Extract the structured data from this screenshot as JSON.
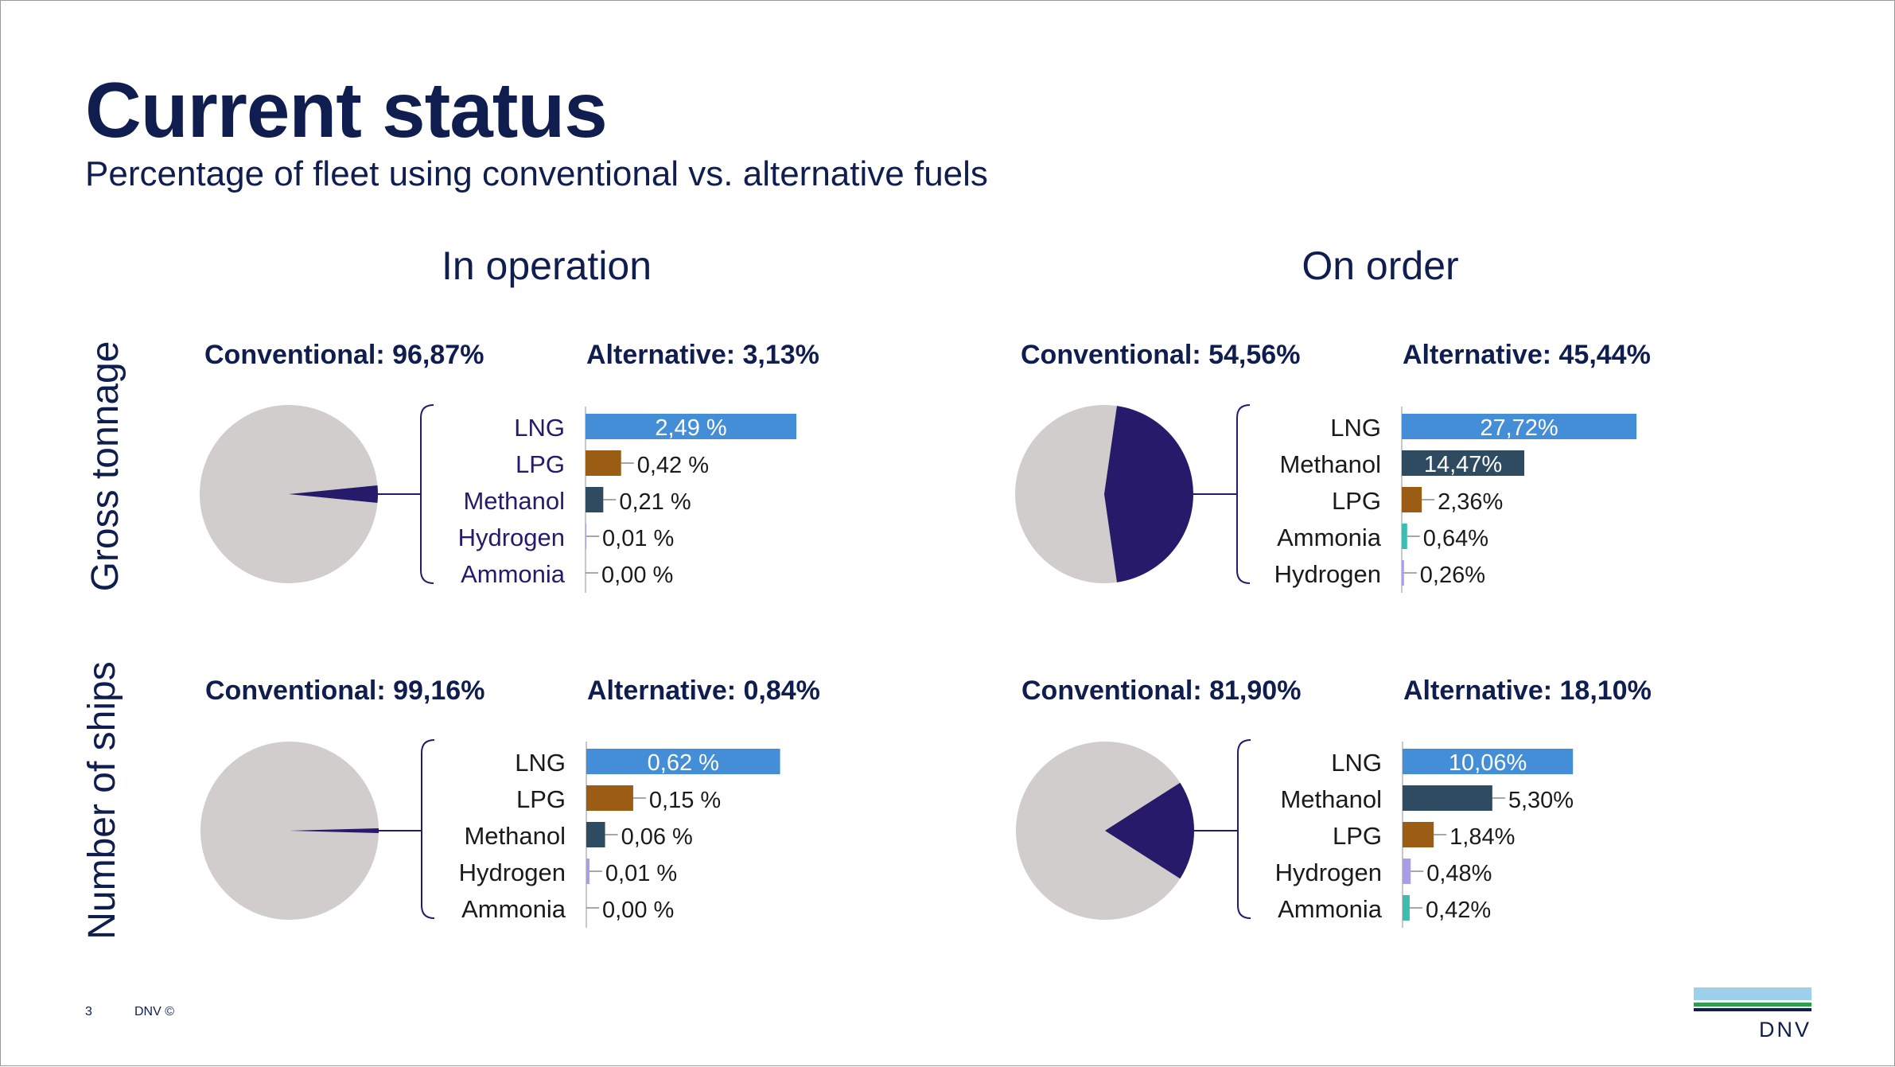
{
  "header": {
    "title": "Current status",
    "subtitle": "Percentage of fleet using conventional vs. alternative fuels"
  },
  "columns": [
    "In operation",
    "On order"
  ],
  "rows": [
    "Gross tonnage",
    "Number of ships"
  ],
  "colors": {
    "conventional": "#d0cdcc",
    "alternative": "#271a6b",
    "LNG": "#448ed8",
    "LPG": "#9a5d13",
    "Methanol": "#2f4b62",
    "Hydrogen": "#a79ee6",
    "Ammonia": "#3dbdb2",
    "bracket": "#271a6b",
    "text_dark": "#0f1d4f"
  },
  "chart_data": [
    {
      "type": "pie+bar",
      "conventional_label": "Conventional: 96,87%",
      "alternative_label": "Alternative: 3,13%",
      "pie": [
        {
          "name": "Conventional",
          "value": 96.87
        },
        {
          "name": "Alternative",
          "value": 3.13
        }
      ],
      "bar_max": 3.1,
      "bars": [
        {
          "name": "LNG",
          "value": 2.49,
          "label": "2,49 %"
        },
        {
          "name": "LPG",
          "value": 0.42,
          "label": "0,42 %"
        },
        {
          "name": "Methanol",
          "value": 0.21,
          "label": "0,21 %"
        },
        {
          "name": "Hydrogen",
          "value": 0.01,
          "label": "0,01 %"
        },
        {
          "name": "Ammonia",
          "value": 0.0,
          "label": "0,00 %"
        }
      ]
    },
    {
      "type": "pie+bar",
      "conventional_label": "Conventional: 54,56%",
      "alternative_label": "Alternative: 45,44%",
      "pie": [
        {
          "name": "Conventional",
          "value": 54.56
        },
        {
          "name": "Alternative",
          "value": 45.44
        }
      ],
      "bar_max": 31,
      "bars": [
        {
          "name": "LNG",
          "value": 27.72,
          "label": "27,72%"
        },
        {
          "name": "Methanol",
          "value": 14.47,
          "label": "14,47%"
        },
        {
          "name": "LPG",
          "value": 2.36,
          "label": "2,36%"
        },
        {
          "name": "Ammonia",
          "value": 0.64,
          "label": "0,64%"
        },
        {
          "name": "Hydrogen",
          "value": 0.26,
          "label": "0,26%"
        }
      ]
    },
    {
      "type": "pie+bar",
      "conventional_label": "Conventional: 99,16%",
      "alternative_label": "Alternative: 0,84%",
      "pie": [
        {
          "name": "Conventional",
          "value": 99.16
        },
        {
          "name": "Alternative",
          "value": 0.84
        }
      ],
      "bar_max": 0.84,
      "bars": [
        {
          "name": "LNG",
          "value": 0.62,
          "label": "0,62 %"
        },
        {
          "name": "LPG",
          "value": 0.15,
          "label": "0,15 %"
        },
        {
          "name": "Methanol",
          "value": 0.06,
          "label": "0,06 %"
        },
        {
          "name": "Hydrogen",
          "value": 0.01,
          "label": "0,01 %"
        },
        {
          "name": "Ammonia",
          "value": 0.0,
          "label": "0,00 %"
        }
      ]
    },
    {
      "type": "pie+bar",
      "conventional_label": "Conventional: 81,90%",
      "alternative_label": "Alternative: 18,10%",
      "pie": [
        {
          "name": "Conventional",
          "value": 81.9
        },
        {
          "name": "Alternative",
          "value": 18.1
        }
      ],
      "bar_max": 15.5,
      "bars": [
        {
          "name": "LNG",
          "value": 10.06,
          "label": "10,06%"
        },
        {
          "name": "Methanol",
          "value": 5.3,
          "label": "5,30%"
        },
        {
          "name": "LPG",
          "value": 1.84,
          "label": "1,84%"
        },
        {
          "name": "Hydrogen",
          "value": 0.48,
          "label": "0,48%"
        },
        {
          "name": "Ammonia",
          "value": 0.42,
          "label": "0,42%"
        }
      ]
    }
  ],
  "footer": {
    "page_number": "3",
    "copyright": "DNV ©",
    "logo_text": "DNV"
  }
}
